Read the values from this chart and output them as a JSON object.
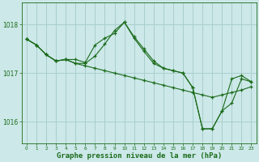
{
  "background_color": "#cce8e8",
  "grid_color": "#aacece",
  "line_color": "#1a6b1a",
  "xlabel": "Graphe pression niveau de la mer (hPa)",
  "xlabel_fontsize": 6.5,
  "yticks": [
    1016,
    1017,
    1018
  ],
  "ylim": [
    1015.55,
    1018.45
  ],
  "xlim": [
    -0.5,
    23.5
  ],
  "xticks": [
    0,
    1,
    2,
    3,
    4,
    5,
    6,
    7,
    8,
    9,
    10,
    11,
    12,
    13,
    14,
    15,
    16,
    17,
    18,
    19,
    20,
    21,
    22,
    23
  ],
  "series": [
    [
      1017.7,
      1017.58,
      1017.38,
      1017.25,
      1017.28,
      1017.2,
      1017.15,
      1017.1,
      1017.05,
      1017.0,
      1016.95,
      1016.9,
      1016.85,
      1016.8,
      1016.75,
      1016.7,
      1016.65,
      1016.6,
      1016.55,
      1016.5,
      1016.55,
      1016.6,
      1016.65,
      1016.72
    ],
    [
      1017.7,
      1017.58,
      1017.38,
      1017.25,
      1017.28,
      1017.2,
      1017.2,
      1017.35,
      1017.6,
      1017.88,
      1018.05,
      1017.75,
      1017.5,
      1017.25,
      1017.1,
      1017.05,
      1017.0,
      1016.7,
      1015.85,
      1015.85,
      1016.22,
      1016.38,
      1016.88,
      1016.82
    ],
    [
      1017.7,
      1017.58,
      1017.38,
      1017.25,
      1017.28,
      1017.28,
      1017.22,
      1017.58,
      1017.72,
      1017.82,
      1018.05,
      1017.72,
      1017.45,
      1017.2,
      1017.1,
      1017.05,
      1017.0,
      1016.7,
      1015.85,
      1015.85,
      1016.22,
      1016.88,
      1016.95,
      1016.82
    ]
  ]
}
